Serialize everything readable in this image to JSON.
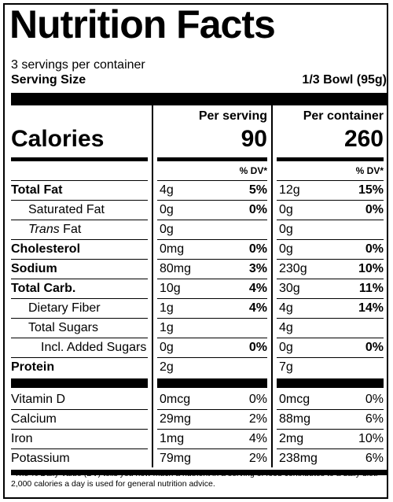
{
  "title": "Nutrition Facts",
  "servings_per_container": "3 servings per container",
  "serving_size_label": "Serving Size",
  "serving_size_value": "1/3 Bowl (95g)",
  "columns": {
    "per_serving": "Per serving",
    "per_container": "Per container"
  },
  "calories": {
    "label": "Calories",
    "per_serving": "90",
    "per_container": "260"
  },
  "dv_header": "% DV*",
  "nutrients": [
    {
      "name": "Total Fat",
      "bold": true,
      "indent": 0,
      "serv_amt": "4g",
      "serv_dv": "5%",
      "cont_amt": "12g",
      "cont_dv": "15%"
    },
    {
      "name": "Saturated Fat",
      "bold": false,
      "indent": 1,
      "serv_amt": "0g",
      "serv_dv": "0%",
      "cont_amt": "0g",
      "cont_dv": "0%"
    },
    {
      "name_italic": "Trans",
      "name": " Fat",
      "bold": false,
      "indent": 1,
      "serv_amt": "0g",
      "serv_dv": "",
      "cont_amt": "0g",
      "cont_dv": ""
    },
    {
      "name": "Cholesterol",
      "bold": true,
      "indent": 0,
      "serv_amt": "0mg",
      "serv_dv": "0%",
      "cont_amt": "0g",
      "cont_dv": "0%"
    },
    {
      "name": "Sodium",
      "bold": true,
      "indent": 0,
      "serv_amt": "80mg",
      "serv_dv": "3%",
      "cont_amt": "230g",
      "cont_dv": "10%"
    },
    {
      "name": "Total Carb.",
      "bold": true,
      "indent": 0,
      "serv_amt": "10g",
      "serv_dv": "4%",
      "cont_amt": "30g",
      "cont_dv": "11%"
    },
    {
      "name": "Dietary Fiber",
      "bold": false,
      "indent": 1,
      "serv_amt": "1g",
      "serv_dv": "4%",
      "cont_amt": "4g",
      "cont_dv": "14%"
    },
    {
      "name": "Total Sugars",
      "bold": false,
      "indent": 1,
      "serv_amt": "1g",
      "serv_dv": "",
      "cont_amt": "4g",
      "cont_dv": ""
    },
    {
      "name": "Incl. Added Sugars",
      "bold": false,
      "indent": 2,
      "serv_amt": "0g",
      "serv_dv": "0%",
      "cont_amt": "0g",
      "cont_dv": "0%"
    },
    {
      "name": "Protein",
      "bold": true,
      "indent": 0,
      "serv_amt": "2g",
      "serv_dv": "",
      "cont_amt": "7g",
      "cont_dv": ""
    }
  ],
  "vitamins": [
    {
      "name": "Vitamin D",
      "serv_amt": "0mcg",
      "serv_dv": "0%",
      "cont_amt": "0mcg",
      "cont_dv": "0%"
    },
    {
      "name": "Calcium",
      "serv_amt": "29mg",
      "serv_dv": "2%",
      "cont_amt": "88mg",
      "cont_dv": "6%"
    },
    {
      "name": "Iron",
      "serv_amt": "1mg",
      "serv_dv": "4%",
      "cont_amt": "2mg",
      "cont_dv": "10%"
    },
    {
      "name": "Potassium",
      "serv_amt": "79mg",
      "serv_dv": "2%",
      "cont_amt": "238mg",
      "cont_dv": "6%"
    }
  ],
  "footnote": "*The % Daily Value (DV) tells you how much a nutrient in a serving of food contributes to a daily diet. 2,000 calories a day is used for general nutrition advice."
}
